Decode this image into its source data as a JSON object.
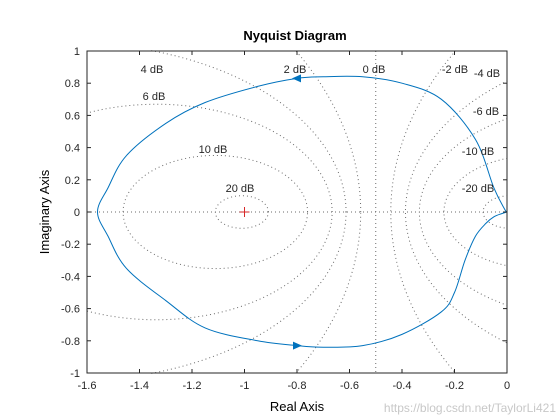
{
  "chart_data": {
    "type": "line",
    "title": "Nyquist Diagram",
    "xlabel": "Real Axis",
    "ylabel": "Imaginary Axis",
    "xlim": [
      -1.6,
      0
    ],
    "ylim": [
      -1,
      1
    ],
    "x_ticks": [
      -1.6,
      -1.4,
      -1.2,
      -1,
      -0.8,
      -0.6,
      -0.4,
      -0.2,
      0
    ],
    "x_tick_labels": [
      "-1.6",
      "-1.4",
      "-1.2",
      "-1",
      "-0.8",
      "-0.6",
      "-0.4",
      "-0.2",
      "0"
    ],
    "y_ticks": [
      1,
      0.8,
      0.6,
      0.4,
      0.2,
      0,
      -0.2,
      -0.4,
      -0.6,
      -0.8,
      -1
    ],
    "y_tick_labels": [
      "1",
      "0.8",
      "0.6",
      "0.4",
      "0.2",
      "0",
      "-0.2",
      "-0.4",
      "-0.6",
      "-0.8",
      "-1"
    ],
    "grid": "M-circles (constant closed-loop dB)",
    "critical_point": [
      -1,
      0
    ],
    "m_circle_labels": [
      "20 dB",
      "10 dB",
      "6 dB",
      "4 dB",
      "2 dB",
      "0 dB",
      "-2 dB",
      "-4 dB",
      "-6 dB",
      "-10 dB",
      "-20 dB"
    ],
    "m_circle_db": [
      20,
      10,
      6,
      4,
      2,
      0,
      -2,
      -4,
      -6,
      -10,
      -20
    ],
    "series": [
      {
        "x": [
          0,
          -0.01,
          -0.05,
          -0.12,
          -0.25,
          -0.4,
          -0.55,
          -0.7,
          -0.8,
          -0.95,
          -1.15,
          -1.3,
          -1.45,
          -1.52,
          -1.56,
          -1.52,
          -1.45,
          -1.3,
          -1.15,
          -0.95,
          -0.8,
          -0.7,
          -0.55,
          -0.4,
          -0.25,
          -0.2,
          -0.16,
          -0.12,
          -0.08,
          -0.05,
          -0.02,
          0
        ],
        "y": [
          0,
          0.02,
          0.15,
          0.45,
          0.7,
          0.8,
          0.84,
          0.84,
          0.83,
          0.78,
          0.68,
          0.55,
          0.35,
          0.15,
          0,
          -0.15,
          -0.35,
          -0.55,
          -0.72,
          -0.8,
          -0.83,
          -0.84,
          -0.83,
          -0.76,
          -0.62,
          -0.5,
          -0.3,
          -0.15,
          -0.07,
          -0.03,
          -0.01,
          0
        ]
      }
    ],
    "colors": {
      "curve": "#0072bd",
      "critical": "#d62728",
      "grid": "#6b6b6b"
    }
  },
  "watermark": "https://blog.csdn.net/TaylorLi421"
}
